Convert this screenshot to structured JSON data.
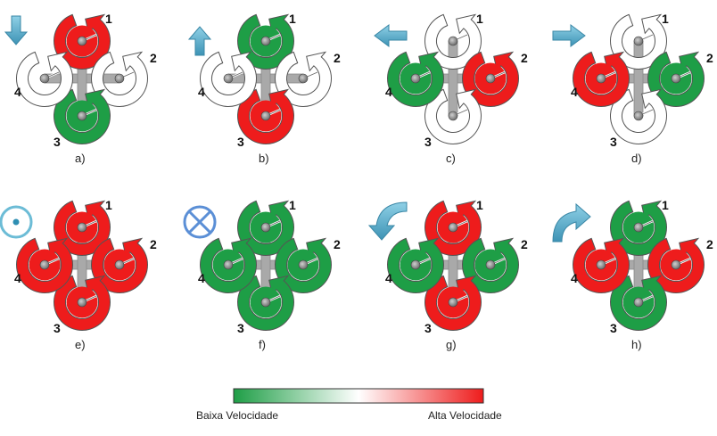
{
  "colors": {
    "high": "#ee1c1c",
    "low": "#1e9e46",
    "neutral": "#ffffff",
    "stroke": "#555555",
    "frame": "#a9a9a9",
    "arrow": "#5bb0cc",
    "cross_symbol": "#5b8fd6"
  },
  "panels": [
    {
      "id": "a",
      "caption": "a)",
      "rotor_speeds": [
        "high",
        "neutral",
        "low",
        "neutral"
      ],
      "motion_icon": "arrow-down-icon"
    },
    {
      "id": "b",
      "caption": "b)",
      "rotor_speeds": [
        "low",
        "neutral",
        "high",
        "neutral"
      ],
      "motion_icon": "arrow-up-icon"
    },
    {
      "id": "c",
      "caption": "c)",
      "rotor_speeds": [
        "neutral",
        "high",
        "neutral",
        "low"
      ],
      "motion_icon": "arrow-left-icon"
    },
    {
      "id": "d",
      "caption": "d)",
      "rotor_speeds": [
        "neutral",
        "low",
        "neutral",
        "high"
      ],
      "motion_icon": "arrow-right-icon"
    },
    {
      "id": "e",
      "caption": "e)",
      "rotor_speeds": [
        "high",
        "high",
        "high",
        "high"
      ],
      "motion_icon": "out-of-page-icon"
    },
    {
      "id": "f",
      "caption": "f)",
      "rotor_speeds": [
        "low",
        "low",
        "low",
        "low"
      ],
      "motion_icon": "into-page-icon"
    },
    {
      "id": "g",
      "caption": "g)",
      "rotor_speeds": [
        "high",
        "low",
        "high",
        "low"
      ],
      "motion_icon": "curved-arrow-left-icon"
    },
    {
      "id": "h",
      "caption": "h)",
      "rotor_speeds": [
        "low",
        "high",
        "low",
        "high"
      ],
      "motion_icon": "curved-arrow-right-icon"
    }
  ],
  "rotor_numbers": [
    "1",
    "2",
    "3",
    "4"
  ],
  "legend": {
    "low_label": "Baixa Velocidade",
    "high_label": "Alta Velocidade",
    "gradient_icon": "velocity-gradient-bar"
  }
}
